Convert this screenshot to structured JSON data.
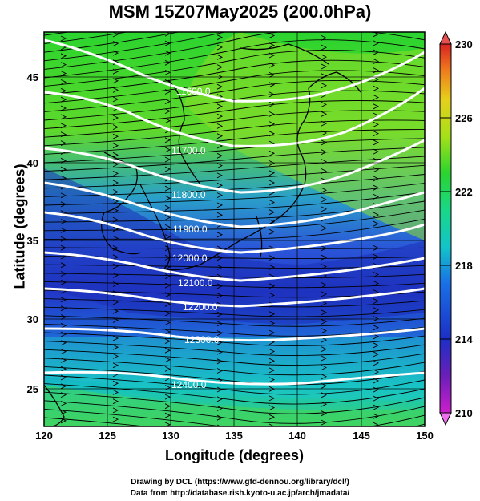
{
  "title": "MSM 15Z07May2025 (200.0hPa)",
  "x_axis": {
    "title": "Longitude (degrees)",
    "ticks": [
      "120",
      "125",
      "130",
      "135",
      "140",
      "145",
      "150"
    ]
  },
  "y_axis": {
    "title": "Latitude  (degrees)",
    "ticks": [
      "25",
      "30",
      "35",
      "40",
      "45"
    ]
  },
  "colorbar": {
    "ticks": [
      "210",
      "214",
      "218",
      "222",
      "226",
      "230"
    ],
    "colors": [
      "#cc1fcc",
      "#6a1fb8",
      "#1c2fc6",
      "#1a6fe6",
      "#13c4c8",
      "#19d788",
      "#2bd42f",
      "#a6e019",
      "#e7d01c",
      "#ef7a1d",
      "#d72323"
    ]
  },
  "contours": [
    {
      "label": "11600.0"
    },
    {
      "label": "11700.0"
    },
    {
      "label": "11800.0"
    },
    {
      "label": "11900.0"
    },
    {
      "label": "12000.0"
    },
    {
      "label": "12100.0"
    },
    {
      "label": "12200.0"
    },
    {
      "label": "12300.0"
    },
    {
      "label": "12400.0"
    }
  ],
  "credits": [
    "Drawing by DCL (https://www.gfd-dennou.org/library/dcl/)",
    "Data from http://database.rish.kyoto-u.ac.jp/arch/jmadata/"
  ]
}
